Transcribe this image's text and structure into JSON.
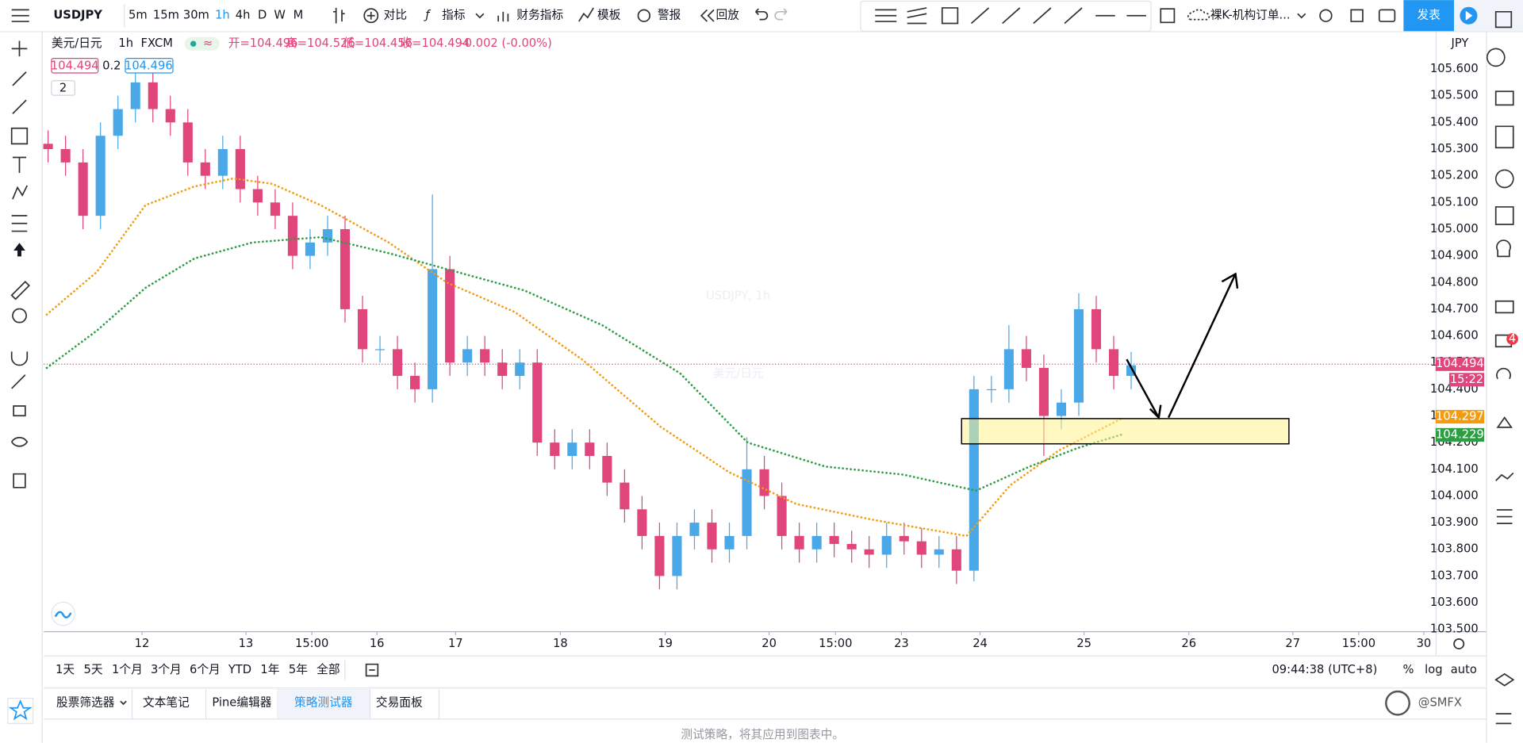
{
  "toolbar": {
    "symbol": "USDJPY",
    "intervals": [
      "5m",
      "15m",
      "30m",
      "1h",
      "4h",
      "D",
      "W",
      "M"
    ],
    "active_interval": 3,
    "buttons": [
      "对比",
      "指标",
      "财务指标",
      "模板",
      "警报",
      "回放"
    ],
    "layout": "裸K-机构订单...",
    "publish": "发表"
  },
  "legend": {
    "name": "美元/日元",
    "interval": "1h",
    "source": "FXCM",
    "ohlc": [
      "开=104.496",
      "高=104.526",
      "低=104.456",
      "收=104.494"
    ],
    "change": "-0.002 (-0.00%)",
    "bid": "104.494",
    "spread": "0.2",
    "ask": "104.496",
    "collapse": "2"
  },
  "watermark": {
    "title": "USDJPY, 1h",
    "subtitle": "美元/日元"
  },
  "chart_data": {
    "type": "candlestick",
    "currency": "JPY",
    "up_color": "#4aa8e8",
    "down_color": "#e0457b",
    "x": [
      1,
      5,
      9,
      13,
      17,
      21,
      25,
      29,
      33,
      37,
      41,
      45,
      49,
      53,
      57,
      61,
      65,
      69,
      73,
      77,
      81,
      85,
      89,
      93,
      97,
      101,
      105,
      109,
      113,
      117,
      121,
      125,
      129,
      133,
      137,
      141,
      145,
      149,
      153,
      157,
      161,
      165,
      169,
      173,
      177,
      181,
      185,
      189,
      193,
      197,
      201,
      205,
      209,
      213,
      217,
      221,
      225,
      229,
      233,
      237,
      241,
      245,
      249
    ],
    "open": [
      105.32,
      105.3,
      105.25,
      105.05,
      105.35,
      105.45,
      105.55,
      105.45,
      105.4,
      105.25,
      105.2,
      105.3,
      105.15,
      105.1,
      105.05,
      104.9,
      104.95,
      105.0,
      104.7,
      104.55,
      104.55,
      104.45,
      104.4,
      104.85,
      104.5,
      104.55,
      104.5,
      104.45,
      104.5,
      104.2,
      104.15,
      104.2,
      104.15,
      104.05,
      103.95,
      103.85,
      103.7,
      103.85,
      103.9,
      103.8,
      103.85,
      104.1,
      104.0,
      103.85,
      103.8,
      103.85,
      103.82,
      103.8,
      103.78,
      103.85,
      103.83,
      103.78,
      103.8,
      103.72,
      104.4,
      104.4,
      104.55,
      104.48,
      104.3,
      104.35,
      104.7,
      104.55,
      104.45
    ],
    "high": [
      105.37,
      105.35,
      105.3,
      105.4,
      105.5,
      105.6,
      105.6,
      105.5,
      105.45,
      105.3,
      105.35,
      105.35,
      105.2,
      105.15,
      105.1,
      105.0,
      105.05,
      105.05,
      104.75,
      104.6,
      104.6,
      104.5,
      105.13,
      104.9,
      104.6,
      104.6,
      104.55,
      104.55,
      104.55,
      104.25,
      104.25,
      104.25,
      104.2,
      104.1,
      104.0,
      103.9,
      103.9,
      103.95,
      103.95,
      103.9,
      104.22,
      104.15,
      104.05,
      103.9,
      103.9,
      103.9,
      103.87,
      103.85,
      103.9,
      103.9,
      103.88,
      103.85,
      103.85,
      104.45,
      104.45,
      104.64,
      104.6,
      104.53,
      104.4,
      104.76,
      104.75,
      104.6,
      104.54
    ],
    "low": [
      105.25,
      105.2,
      105.0,
      105.0,
      105.3,
      105.4,
      105.4,
      105.35,
      105.2,
      105.15,
      105.15,
      105.1,
      105.05,
      105.0,
      104.85,
      104.85,
      104.9,
      104.65,
      104.5,
      104.5,
      104.4,
      104.35,
      104.35,
      104.45,
      104.45,
      104.45,
      104.4,
      104.4,
      104.15,
      104.1,
      104.1,
      104.1,
      104.0,
      103.9,
      103.8,
      103.65,
      103.65,
      103.8,
      103.75,
      103.75,
      103.8,
      103.95,
      103.8,
      103.75,
      103.75,
      103.77,
      103.75,
      103.73,
      103.73,
      103.78,
      103.73,
      103.73,
      103.67,
      103.68,
      104.35,
      104.35,
      104.43,
      104.15,
      104.25,
      104.3,
      104.5,
      104.4,
      104.4
    ],
    "close": [
      105.3,
      105.25,
      105.05,
      105.35,
      105.45,
      105.55,
      105.45,
      105.4,
      105.25,
      105.2,
      105.3,
      105.15,
      105.1,
      105.05,
      104.9,
      104.95,
      105.0,
      104.7,
      104.55,
      104.55,
      104.45,
      104.4,
      104.85,
      104.5,
      104.55,
      104.5,
      104.45,
      104.5,
      104.2,
      104.15,
      104.2,
      104.15,
      104.05,
      103.95,
      103.85,
      103.7,
      103.85,
      103.9,
      103.8,
      103.85,
      104.1,
      104.0,
      103.85,
      103.8,
      103.85,
      103.82,
      103.8,
      103.78,
      103.85,
      103.83,
      103.78,
      103.8,
      103.72,
      104.4,
      104.4,
      104.55,
      104.48,
      104.3,
      104.35,
      104.7,
      104.55,
      104.45,
      104.49
    ],
    "series": [
      {
        "color": "#f39c12",
        "x": [
          0.7,
          12.2,
          23.3,
          34.5,
          43.4,
          52.3,
          63.4,
          79,
          92.3,
          107.8,
          123.4,
          141.2,
          156.8,
          172.3,
          190.1,
          211.3,
          221.3,
          232.4,
          246.8
        ],
        "values": [
          104.68,
          104.84,
          105.09,
          105.16,
          105.19,
          105.17,
          105.09,
          104.95,
          104.8,
          104.69,
          104.51,
          104.26,
          104.09,
          103.97,
          103.91,
          103.85,
          104.04,
          104.17,
          104.29
        ],
        "last_value": {
          "value": 104.297,
          "label": "104.297"
        }
      },
      {
        "color": "#2e9e44",
        "x": [
          0.7,
          12.2,
          23.3,
          34.5,
          47.8,
          63.4,
          79,
          94.5,
          110.1,
          127.9,
          145.7,
          161.2,
          179,
          196.8,
          213.5,
          225.7,
          236.8,
          246.8
        ],
        "values": [
          104.48,
          104.62,
          104.78,
          104.89,
          104.95,
          104.97,
          104.91,
          104.84,
          104.77,
          104.64,
          104.46,
          104.2,
          104.11,
          104.08,
          104.02,
          104.11,
          104.18,
          104.23
        ],
        "last_value": {
          "value": 104.229,
          "label": "104.229"
        }
      }
    ],
    "last_price": {
      "value": 104.494,
      "label": "104.494"
    },
    "countdown": "15:22",
    "xlim": [
      0,
      318.7
    ],
    "ylim": [
      103.493,
      105.742
    ],
    "xticks": [
      {
        "value": 22.5,
        "label": "12"
      },
      {
        "value": 46.3,
        "label": "13"
      },
      {
        "value": 61.4,
        "label": "15:00"
      },
      {
        "value": 76.3,
        "label": "16"
      },
      {
        "value": 94.3,
        "label": "17"
      },
      {
        "value": 118.3,
        "label": "18"
      },
      {
        "value": 142.3,
        "label": "19"
      },
      {
        "value": 166.1,
        "label": "20"
      },
      {
        "value": 181.3,
        "label": "15:00"
      },
      {
        "value": 196.4,
        "label": "23"
      },
      {
        "value": 214.4,
        "label": "24"
      },
      {
        "value": 238.2,
        "label": "25"
      },
      {
        "value": 262.2,
        "label": "26"
      },
      {
        "value": 286.0,
        "label": "27"
      },
      {
        "value": 301.1,
        "label": "15:00"
      },
      {
        "value": 316.0,
        "label": "30"
      }
    ],
    "yticks": [
      {
        "value": 103.5,
        "label": "103.500"
      },
      {
        "value": 103.6,
        "label": "103.600"
      },
      {
        "value": 103.7,
        "label": "103.700"
      },
      {
        "value": 103.8,
        "label": "103.800"
      },
      {
        "value": 103.9,
        "label": "103.900"
      },
      {
        "value": 104.0,
        "label": "104.000"
      },
      {
        "value": 104.1,
        "label": "104.100"
      },
      {
        "value": 104.2,
        "label": "104.200"
      },
      {
        "value": 104.3,
        "label": "104.300"
      },
      {
        "value": 104.4,
        "label": "104.400"
      },
      {
        "value": 104.5,
        "label": "104.500"
      },
      {
        "value": 104.6,
        "label": "104.600"
      },
      {
        "value": 104.7,
        "label": "104.700"
      },
      {
        "value": 104.8,
        "label": "104.800"
      },
      {
        "value": 104.9,
        "label": "104.900"
      },
      {
        "value": 105.0,
        "label": "105.000"
      },
      {
        "value": 105.1,
        "label": "105.100"
      },
      {
        "value": 105.2,
        "label": "105.200"
      },
      {
        "value": 105.3,
        "label": "105.300"
      },
      {
        "value": 105.4,
        "label": "105.400"
      },
      {
        "value": 105.5,
        "label": "105.500"
      },
      {
        "value": 105.6,
        "label": "105.600"
      }
    ]
  },
  "ranges": [
    "1天",
    "5天",
    "1个月",
    "3个月",
    "6个月",
    "YTD",
    "1年",
    "5年",
    "全部"
  ],
  "clock": "09:44:38 (UTC+8)",
  "scale_options": [
    "%",
    "log",
    "auto"
  ],
  "tabs": [
    "股票筛选器",
    "文本笔记",
    "Pine编辑器",
    "策略测试器",
    "交易面板"
  ],
  "active_tab": 3,
  "message": "测试策略，将其应用到图表中。",
  "alerts_badge": "4",
  "brand": "@SMFX"
}
